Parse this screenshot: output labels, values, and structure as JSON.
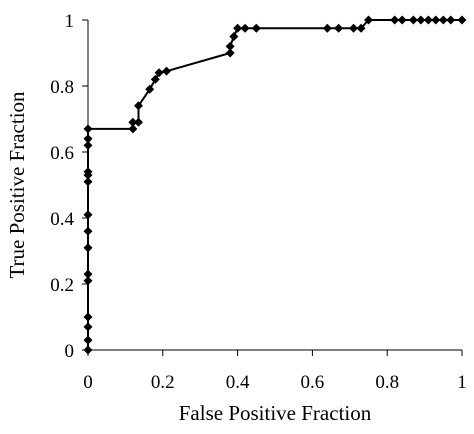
{
  "chart_data": {
    "type": "line",
    "xlabel": "False Positive Fraction",
    "ylabel": "True Positive Fraction",
    "xlim": [
      0,
      1
    ],
    "ylim": [
      0,
      1
    ],
    "x_ticks": [
      "0",
      "0.2",
      "0.4",
      "0.6",
      "0.8",
      "1"
    ],
    "y_ticks": [
      "0",
      "0.2",
      "0.4",
      "0.6",
      "0.8",
      "1"
    ],
    "grid": false,
    "legend": "none",
    "marker": "diamond",
    "line_color": "#000000",
    "series": [
      {
        "points": [
          [
            0,
            0
          ],
          [
            0,
            0.03
          ],
          [
            0,
            0.07
          ],
          [
            0,
            0.1
          ],
          [
            0,
            0.21
          ],
          [
            0,
            0.23
          ],
          [
            0,
            0.31
          ],
          [
            0,
            0.36
          ],
          [
            0,
            0.41
          ],
          [
            0,
            0.51
          ],
          [
            0,
            0.53
          ],
          [
            0,
            0.54
          ],
          [
            0,
            0.62
          ],
          [
            0,
            0.64
          ],
          [
            0,
            0.67
          ],
          [
            0.12,
            0.67
          ],
          [
            0.12,
            0.69
          ],
          [
            0.135,
            0.69
          ],
          [
            0.135,
            0.74
          ],
          [
            0.165,
            0.79
          ],
          [
            0.18,
            0.82
          ],
          [
            0.19,
            0.84
          ],
          [
            0.21,
            0.845
          ],
          [
            0.38,
            0.9
          ],
          [
            0.38,
            0.92
          ],
          [
            0.39,
            0.95
          ],
          [
            0.4,
            0.975
          ],
          [
            0.42,
            0.975
          ],
          [
            0.45,
            0.975
          ],
          [
            0.64,
            0.975
          ],
          [
            0.67,
            0.975
          ],
          [
            0.71,
            0.975
          ],
          [
            0.73,
            0.975
          ],
          [
            0.75,
            1.0
          ],
          [
            0.82,
            1.0
          ],
          [
            0.84,
            1.0
          ],
          [
            0.87,
            1.0
          ],
          [
            0.89,
            1.0
          ],
          [
            0.91,
            1.0
          ],
          [
            0.93,
            1.0
          ],
          [
            0.95,
            1.0
          ],
          [
            0.97,
            1.0
          ],
          [
            1.0,
            1.0
          ]
        ]
      }
    ]
  }
}
